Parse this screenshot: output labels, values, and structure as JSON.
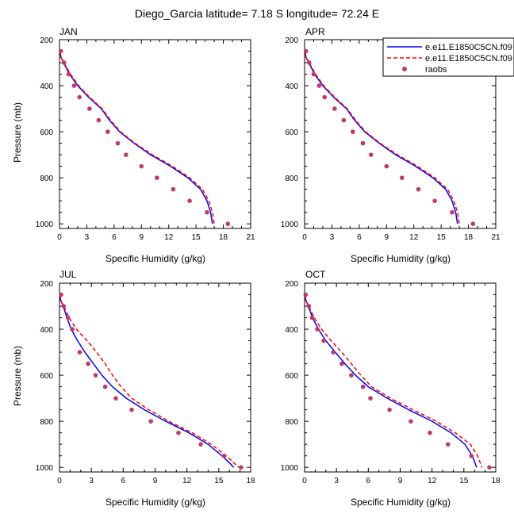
{
  "figure": {
    "title": "Diego_Garcia  latitude= 7.18 S longitude= 72.24 E"
  },
  "legend": {
    "entries": [
      "e.e11.E1850C5CN.f09",
      "e.e11.E1850C5CN.f09",
      "raobs"
    ]
  },
  "colors": {
    "series1": "#0000ff",
    "series2": "#ff0000",
    "raobs": "#c0396b",
    "axis": "#000000"
  },
  "chart_data": [
    {
      "type": "line",
      "panel": "JAN",
      "xlabel": "Specific Humidity (g/kg)",
      "ylabel": "Pressure (mb)",
      "xlim": [
        0,
        21
      ],
      "ylim": [
        200,
        1020
      ],
      "y_inverted": true,
      "xticks": [
        0,
        3,
        6,
        9,
        12,
        15,
        18,
        21
      ],
      "yticks": [
        200,
        400,
        600,
        800,
        1000
      ],
      "series": [
        {
          "name": "e.e11.E1850C5CN.f09",
          "style": "solid",
          "x": [
            0.06,
            0.15,
            0.45,
            1.1,
            2.0,
            3.2,
            4.6,
            5.5,
            6.6,
            8.2,
            10.0,
            12.2,
            14.1,
            15.5,
            16.2,
            16.6,
            16.8
          ],
          "y": [
            250,
            275,
            300,
            350,
            400,
            450,
            500,
            550,
            600,
            650,
            700,
            750,
            800,
            850,
            900,
            950,
            1000
          ]
        },
        {
          "name": "e.e11.E1850C5CN.f09",
          "style": "dashed",
          "x": [
            0.06,
            0.15,
            0.5,
            1.2,
            2.1,
            3.3,
            4.7,
            5.6,
            6.7,
            8.3,
            10.2,
            12.4,
            14.3,
            15.7,
            16.4,
            16.8,
            17.0
          ],
          "y": [
            250,
            275,
            300,
            350,
            400,
            450,
            500,
            550,
            600,
            650,
            700,
            750,
            800,
            850,
            900,
            950,
            1000
          ]
        },
        {
          "name": "raobs",
          "style": "markers",
          "x": [
            0.15,
            0.5,
            1.0,
            1.6,
            2.2,
            3.3,
            4.3,
            5.3,
            6.4,
            7.3,
            9.0,
            10.7,
            12.5,
            14.3,
            16.2,
            18.5
          ],
          "y": [
            250,
            300,
            350,
            400,
            450,
            500,
            550,
            600,
            650,
            700,
            750,
            800,
            850,
            900,
            950,
            1000
          ]
        }
      ]
    },
    {
      "type": "line",
      "panel": "APR",
      "xlabel": "Specific Humidity (g/kg)",
      "ylabel": "Pressure (mb)",
      "xlim": [
        0,
        21
      ],
      "ylim": [
        200,
        1020
      ],
      "y_inverted": true,
      "xticks": [
        0,
        3,
        6,
        9,
        12,
        15,
        18,
        21
      ],
      "yticks": [
        200,
        400,
        600,
        800,
        1000
      ],
      "series": [
        {
          "name": "e.e11.E1850C5CN.f09",
          "style": "solid",
          "x": [
            0.06,
            0.15,
            0.45,
            1.1,
            2.0,
            3.2,
            4.6,
            5.5,
            6.6,
            8.2,
            10.0,
            12.2,
            14.1,
            15.5,
            16.2,
            16.6,
            16.8
          ],
          "y": [
            250,
            275,
            300,
            350,
            400,
            450,
            500,
            550,
            600,
            650,
            700,
            750,
            800,
            850,
            900,
            950,
            1000
          ]
        },
        {
          "name": "e.e11.E1850C5CN.f09",
          "style": "dashed",
          "x": [
            0.06,
            0.15,
            0.5,
            1.2,
            2.1,
            3.3,
            4.7,
            5.6,
            6.7,
            8.3,
            10.2,
            12.4,
            14.3,
            15.7,
            16.4,
            16.8,
            17.0
          ],
          "y": [
            250,
            275,
            300,
            350,
            400,
            450,
            500,
            550,
            600,
            650,
            700,
            750,
            800,
            850,
            900,
            950,
            1000
          ]
        },
        {
          "name": "raobs",
          "style": "markers",
          "x": [
            0.15,
            0.5,
            1.0,
            1.6,
            2.2,
            3.3,
            4.3,
            5.3,
            6.4,
            7.3,
            9.0,
            10.7,
            12.5,
            14.3,
            16.2,
            18.5
          ],
          "y": [
            250,
            300,
            350,
            400,
            450,
            500,
            550,
            600,
            650,
            700,
            750,
            800,
            850,
            900,
            950,
            1000
          ]
        }
      ]
    },
    {
      "type": "line",
      "panel": "JUL",
      "xlabel": "Specific Humidity (g/kg)",
      "ylabel": "Pressure (mb)",
      "xlim": [
        0,
        18
      ],
      "ylim": [
        200,
        1020
      ],
      "y_inverted": true,
      "xticks": [
        0,
        3,
        6,
        9,
        12,
        15,
        18
      ],
      "yticks": [
        200,
        400,
        600,
        800,
        1000
      ],
      "series": [
        {
          "name": "e.e11.E1850C5CN.f09",
          "style": "solid",
          "x": [
            0.05,
            0.12,
            0.35,
            0.7,
            1.1,
            1.7,
            2.4,
            3.2,
            4.0,
            5.0,
            6.3,
            8.0,
            10.0,
            12.2,
            14.0,
            15.3,
            16.0,
            16.4
          ],
          "y": [
            250,
            275,
            300,
            350,
            400,
            450,
            500,
            550,
            600,
            650,
            700,
            750,
            800,
            850,
            900,
            950,
            980,
            1000
          ]
        },
        {
          "name": "e.e11.E1850C5CN.f09",
          "style": "dashed",
          "x": [
            0.05,
            0.12,
            0.4,
            0.9,
            1.6,
            2.6,
            3.5,
            4.3,
            5.0,
            5.8,
            6.8,
            8.4,
            10.3,
            12.5,
            14.3,
            15.7,
            16.4,
            16.9
          ],
          "y": [
            250,
            275,
            300,
            350,
            400,
            450,
            500,
            550,
            600,
            650,
            700,
            750,
            800,
            850,
            900,
            950,
            980,
            1000
          ]
        },
        {
          "name": "raobs",
          "style": "markers",
          "x": [
            0.15,
            0.4,
            0.8,
            1.2,
            1.9,
            2.7,
            3.4,
            4.3,
            5.3,
            6.8,
            8.6,
            11.2,
            13.3,
            15.5,
            17.1
          ],
          "y": [
            250,
            300,
            350,
            400,
            500,
            550,
            600,
            650,
            700,
            750,
            800,
            850,
            900,
            950,
            1000
          ]
        }
      ]
    },
    {
      "type": "line",
      "panel": "OCT",
      "xlabel": "Specific Humidity (g/kg)",
      "ylabel": "Pressure (mb)",
      "xlim": [
        0,
        18
      ],
      "ylim": [
        200,
        1020
      ],
      "y_inverted": true,
      "xticks": [
        0,
        3,
        6,
        9,
        12,
        15,
        18
      ],
      "yticks": [
        200,
        400,
        600,
        800,
        1000
      ],
      "series": [
        {
          "name": "e.e11.E1850C5CN.f09",
          "style": "solid",
          "x": [
            0.05,
            0.12,
            0.35,
            0.75,
            1.3,
            2.0,
            2.9,
            3.8,
            4.8,
            6.0,
            7.8,
            9.8,
            12.0,
            13.8,
            15.1,
            15.8,
            16.2
          ],
          "y": [
            250,
            275,
            300,
            350,
            400,
            450,
            500,
            550,
            600,
            650,
            700,
            750,
            800,
            850,
            900,
            950,
            1000
          ]
        },
        {
          "name": "e.e11.E1850C5CN.f09",
          "style": "dashed",
          "x": [
            0.05,
            0.12,
            0.4,
            0.9,
            1.6,
            2.5,
            3.5,
            4.4,
            5.3,
            6.3,
            8.1,
            10.2,
            12.4,
            14.2,
            15.6,
            16.3,
            16.7
          ],
          "y": [
            250,
            275,
            300,
            350,
            400,
            450,
            500,
            550,
            600,
            650,
            700,
            750,
            800,
            850,
            900,
            950,
            1000
          ]
        },
        {
          "name": "raobs",
          "style": "markers",
          "x": [
            0.1,
            0.4,
            0.7,
            1.2,
            1.8,
            2.7,
            3.5,
            4.4,
            5.5,
            6.2,
            8.0,
            10.0,
            11.8,
            13.5,
            15.7,
            17.4
          ],
          "y": [
            250,
            300,
            350,
            400,
            450,
            500,
            550,
            600,
            650,
            700,
            750,
            800,
            850,
            900,
            950,
            1000
          ]
        }
      ]
    }
  ]
}
